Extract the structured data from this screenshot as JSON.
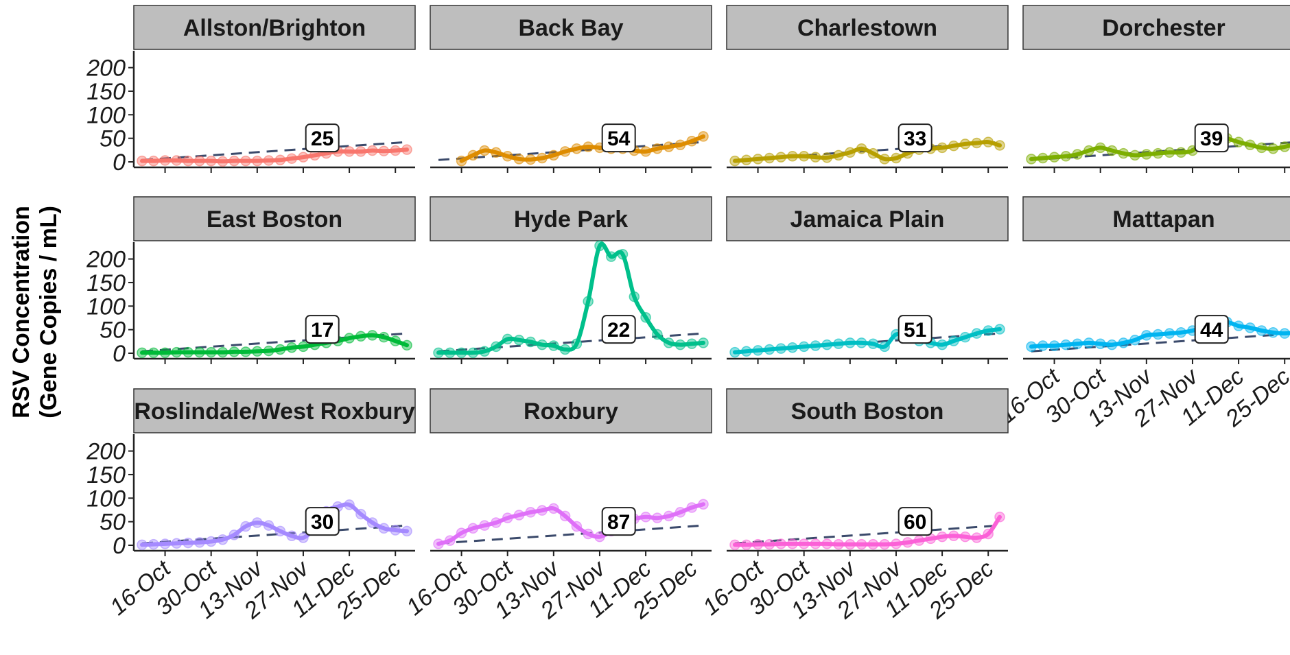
{
  "chart_data": {
    "type": "line",
    "ylabel": [
      "RSV Concentration",
      "(Gene Copies / mL)"
    ],
    "ylim": [
      0,
      230
    ],
    "yticks": [
      0,
      50,
      100,
      150,
      200
    ],
    "xticks": [
      "16-Oct",
      "30-Oct",
      "13-Nov",
      "27-Nov",
      "11-Dec",
      "25-Dec"
    ],
    "x": [
      "10-Oct",
      "13-Oct",
      "16-Oct",
      "20-Oct",
      "23-Oct",
      "27-Oct",
      "30-Oct",
      "3-Nov",
      "6-Nov",
      "10-Nov",
      "13-Nov",
      "17-Nov",
      "20-Nov",
      "24-Nov",
      "27-Nov",
      "1-Dec",
      "4-Dec",
      "8-Dec",
      "11-Dec",
      "15-Dec",
      "18-Dec",
      "22-Dec",
      "25-Dec",
      "28-Dec"
    ],
    "panels": [
      {
        "name": "Allston/Brighton",
        "color": "#F8766D",
        "label": 25,
        "values": [
          2,
          2,
          3,
          3,
          2,
          2,
          2,
          1,
          2,
          2,
          2,
          3,
          4,
          7,
          10,
          14,
          18,
          22,
          22,
          22,
          24,
          23,
          24,
          26
        ],
        "trend": [
          4,
          42
        ]
      },
      {
        "name": "Back Bay",
        "color": "#DE8C00",
        "label": 54,
        "values": [
          null,
          null,
          2,
          14,
          24,
          20,
          12,
          6,
          5,
          8,
          14,
          22,
          28,
          32,
          30,
          28,
          28,
          24,
          22,
          28,
          32,
          36,
          44,
          54
        ],
        "trend": [
          4,
          42
        ]
      },
      {
        "name": "Charlestown",
        "color": "#B79F00",
        "label": 33,
        "values": [
          2,
          4,
          6,
          8,
          10,
          12,
          12,
          10,
          9,
          14,
          20,
          28,
          18,
          6,
          8,
          18,
          26,
          28,
          30,
          34,
          38,
          40,
          42,
          35
        ],
        "trend": [
          4,
          42
        ]
      },
      {
        "name": "Dorchester",
        "color": "#7CAE00",
        "label": 39,
        "values": [
          6,
          8,
          10,
          12,
          16,
          24,
          30,
          24,
          18,
          14,
          16,
          18,
          20,
          20,
          24,
          46,
          58,
          50,
          42,
          36,
          30,
          28,
          32,
          38
        ],
        "trend": [
          4,
          42
        ]
      },
      {
        "name": "East Boston",
        "color": "#00BA38",
        "label": 17,
        "values": [
          1,
          1,
          1,
          2,
          2,
          2,
          2,
          2,
          3,
          3,
          4,
          5,
          8,
          12,
          14,
          18,
          22,
          26,
          32,
          36,
          38,
          34,
          26,
          17
        ],
        "trend": [
          4,
          42
        ]
      },
      {
        "name": "Hyde Park",
        "color": "#00C08B",
        "label": 22,
        "values": [
          1,
          1,
          1,
          1,
          4,
          14,
          30,
          28,
          24,
          18,
          16,
          8,
          20,
          110,
          228,
          205,
          210,
          120,
          76,
          40,
          22,
          18,
          20,
          22
        ],
        "trend": [
          4,
          42
        ]
      },
      {
        "name": "Jamaica Plain",
        "color": "#00BFC4",
        "label": 51,
        "values": [
          2,
          4,
          6,
          8,
          10,
          12,
          14,
          16,
          18,
          20,
          22,
          22,
          20,
          14,
          40,
          34,
          26,
          22,
          18,
          26,
          34,
          42,
          48,
          51
        ],
        "trend": [
          4,
          42
        ]
      },
      {
        "name": "Mattapan",
        "color": "#00B4F0",
        "label": 44,
        "values": [
          14,
          16,
          16,
          18,
          20,
          22,
          20,
          18,
          22,
          28,
          38,
          40,
          42,
          44,
          48,
          56,
          60,
          66,
          58,
          54,
          48,
          44,
          42,
          44
        ],
        "trend": [
          4,
          42
        ]
      },
      {
        "name": "Roslindale/West Roxbury",
        "color": "#A58AFF",
        "label": 30,
        "values": [
          1,
          2,
          3,
          4,
          5,
          6,
          8,
          12,
          22,
          40,
          48,
          42,
          30,
          20,
          16,
          36,
          72,
          82,
          86,
          66,
          48,
          36,
          32,
          30
        ],
        "trend": [
          4,
          42
        ]
      },
      {
        "name": "Roxbury",
        "color": "#DF70F8",
        "label": 87,
        "values": [
          3,
          10,
          26,
          36,
          42,
          48,
          58,
          64,
          70,
          74,
          78,
          62,
          40,
          24,
          18,
          30,
          48,
          56,
          60,
          58,
          62,
          70,
          80,
          87
        ],
        "trend": [
          4,
          42
        ]
      },
      {
        "name": "South Boston",
        "color": "#FB61D7",
        "label": 60,
        "values": [
          1,
          1,
          2,
          2,
          3,
          3,
          3,
          3,
          3,
          2,
          2,
          2,
          2,
          2,
          3,
          6,
          10,
          14,
          18,
          20,
          18,
          16,
          24,
          60
        ],
        "trend": [
          4,
          42
        ]
      }
    ]
  }
}
